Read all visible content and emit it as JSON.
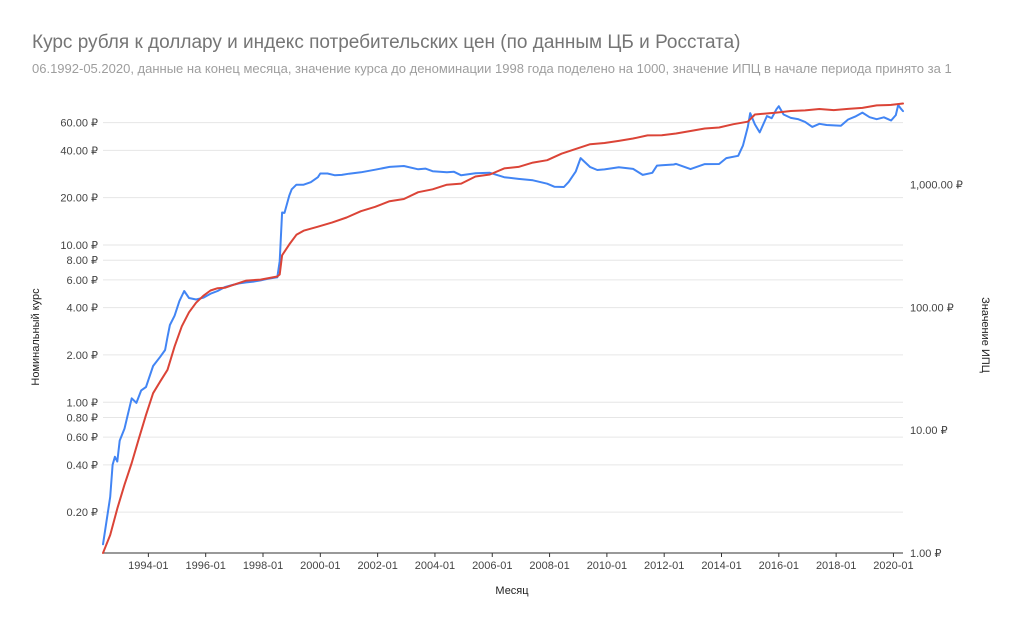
{
  "chart_data": {
    "type": "line",
    "title": "Курс рубля к доллару и индекс потребительских цен (по данным ЦБ и Росстата)",
    "subtitle": "06.1992-05.2020, данные на конец месяца, значение курса до деноминации 1998 года поделено на 1000, значение ИПЦ в начале периода принято за 1",
    "xlabel": "Месяц",
    "ylabel_left": "Номинальный курс",
    "ylabel_right": "Значение ИПЦ",
    "x_ticks": [
      "1994-01",
      "1996-01",
      "1998-01",
      "2000-01",
      "2002-01",
      "2004-01",
      "2006-01",
      "2008-01",
      "2010-01",
      "2012-01",
      "2014-01",
      "2016-01",
      "2018-01",
      "2020-01"
    ],
    "y_left_ticks": [
      "0.20 ₽",
      "0.40 ₽",
      "0.60 ₽",
      "0.80 ₽",
      "1.00 ₽",
      "2.00 ₽",
      "4.00 ₽",
      "6.00 ₽",
      "8.00 ₽",
      "10.00 ₽",
      "20.00 ₽",
      "40.00 ₽",
      "60.00 ₽"
    ],
    "y_right_ticks": [
      "1.00 ₽",
      "10.00 ₽",
      "100.00 ₽",
      "1,000.00 ₽"
    ],
    "y_left_scale": "log",
    "y_right_scale": "log",
    "ylim_left": [
      0.11,
      80
    ],
    "ylim_right": [
      1,
      4600
    ],
    "xlim": [
      "1992-06",
      "2020-05"
    ],
    "grid": true,
    "series": [
      {
        "name": "Номинальный курс",
        "axis": "left",
        "color": "#4285f4",
        "points": [
          [
            "1992-06",
            0.125
          ],
          [
            "1992-09",
            0.25
          ],
          [
            "1992-10",
            0.4
          ],
          [
            "1992-11",
            0.45
          ],
          [
            "1992-12",
            0.42
          ],
          [
            "1993-01",
            0.57
          ],
          [
            "1993-03",
            0.68
          ],
          [
            "1993-06",
            1.06
          ],
          [
            "1993-08",
            0.99
          ],
          [
            "1993-10",
            1.19
          ],
          [
            "1993-12",
            1.25
          ],
          [
            "1994-03",
            1.7
          ],
          [
            "1994-06",
            1.95
          ],
          [
            "1994-08",
            2.15
          ],
          [
            "1994-09",
            2.6
          ],
          [
            "1994-10",
            3.1
          ],
          [
            "1994-12",
            3.55
          ],
          [
            "1995-02",
            4.4
          ],
          [
            "1995-04",
            5.1
          ],
          [
            "1995-06",
            4.6
          ],
          [
            "1995-09",
            4.5
          ],
          [
            "1995-12",
            4.62
          ],
          [
            "1996-03",
            4.9
          ],
          [
            "1996-06",
            5.1
          ],
          [
            "1996-09",
            5.4
          ],
          [
            "1996-12",
            5.56
          ],
          [
            "1997-03",
            5.7
          ],
          [
            "1997-06",
            5.78
          ],
          [
            "1997-09",
            5.85
          ],
          [
            "1997-12",
            5.96
          ],
          [
            "1998-03",
            6.1
          ],
          [
            "1998-07",
            6.23
          ],
          [
            "1998-08",
            7.9
          ],
          [
            "1998-09",
            16.1
          ],
          [
            "1998-10",
            16.0
          ],
          [
            "1998-12",
            20.65
          ],
          [
            "1999-01",
            22.6
          ],
          [
            "1999-03",
            24.2
          ],
          [
            "1999-06",
            24.2
          ],
          [
            "1999-09",
            25.1
          ],
          [
            "1999-12",
            27.0
          ],
          [
            "2000-01",
            28.5
          ],
          [
            "2000-04",
            28.5
          ],
          [
            "2000-07",
            27.8
          ],
          [
            "2000-10",
            27.9
          ],
          [
            "2001-01",
            28.4
          ],
          [
            "2001-06",
            29.0
          ],
          [
            "2001-12",
            30.14
          ],
          [
            "2002-06",
            31.4
          ],
          [
            "2002-12",
            31.78
          ],
          [
            "2003-06",
            30.3
          ],
          [
            "2003-09",
            30.6
          ],
          [
            "2003-12",
            29.45
          ],
          [
            "2004-06",
            29.0
          ],
          [
            "2004-09",
            29.2
          ],
          [
            "2004-12",
            27.75
          ],
          [
            "2005-06",
            28.6
          ],
          [
            "2005-12",
            28.78
          ],
          [
            "2006-06",
            27.0
          ],
          [
            "2006-12",
            26.33
          ],
          [
            "2007-06",
            25.8
          ],
          [
            "2007-12",
            24.55
          ],
          [
            "2008-03",
            23.5
          ],
          [
            "2008-07",
            23.4
          ],
          [
            "2008-09",
            25.2
          ],
          [
            "2008-12",
            29.4
          ],
          [
            "2009-02",
            35.7
          ],
          [
            "2009-06",
            31.3
          ],
          [
            "2009-09",
            30.0
          ],
          [
            "2009-12",
            30.24
          ],
          [
            "2010-06",
            31.2
          ],
          [
            "2010-12",
            30.48
          ],
          [
            "2011-04",
            27.9
          ],
          [
            "2011-08",
            28.8
          ],
          [
            "2011-10",
            32.0
          ],
          [
            "2011-12",
            32.2
          ],
          [
            "2012-05",
            32.5
          ],
          [
            "2012-06",
            32.8
          ],
          [
            "2012-12",
            30.4
          ],
          [
            "2013-06",
            32.7
          ],
          [
            "2013-12",
            32.73
          ],
          [
            "2014-03",
            35.7
          ],
          [
            "2014-08",
            36.9
          ],
          [
            "2014-10",
            43.0
          ],
          [
            "2014-12",
            56.3
          ],
          [
            "2015-01",
            69.0
          ],
          [
            "2015-03",
            58.5
          ],
          [
            "2015-05",
            52.0
          ],
          [
            "2015-08",
            66.0
          ],
          [
            "2015-10",
            64.0
          ],
          [
            "2015-12",
            72.9
          ],
          [
            "2016-01",
            76.3
          ],
          [
            "2016-03",
            67.6
          ],
          [
            "2016-06",
            64.3
          ],
          [
            "2016-09",
            63.2
          ],
          [
            "2016-12",
            60.66
          ],
          [
            "2017-03",
            56.4
          ],
          [
            "2017-06",
            59.0
          ],
          [
            "2017-09",
            58.0
          ],
          [
            "2017-12",
            57.6
          ],
          [
            "2018-03",
            57.3
          ],
          [
            "2018-06",
            62.8
          ],
          [
            "2018-09",
            65.6
          ],
          [
            "2018-12",
            69.5
          ],
          [
            "2019-03",
            65.0
          ],
          [
            "2019-06",
            63.1
          ],
          [
            "2019-09",
            64.9
          ],
          [
            "2019-12",
            61.9
          ],
          [
            "2020-02",
            66.99
          ],
          [
            "2020-03",
            77.7
          ],
          [
            "2020-04",
            74.0
          ],
          [
            "2020-05",
            71.1
          ]
        ]
      },
      {
        "name": "Значение ИПЦ",
        "axis": "right",
        "color": "#db4437",
        "points": [
          [
            "1992-06",
            1.0
          ],
          [
            "1992-09",
            1.4
          ],
          [
            "1992-12",
            2.3
          ],
          [
            "1993-03",
            3.6
          ],
          [
            "1993-06",
            5.4
          ],
          [
            "1993-09",
            8.5
          ],
          [
            "1993-12",
            13.3
          ],
          [
            "1994-03",
            20.0
          ],
          [
            "1994-06",
            25.0
          ],
          [
            "1994-09",
            31.0
          ],
          [
            "1994-12",
            48.0
          ],
          [
            "1995-03",
            70.0
          ],
          [
            "1995-06",
            91.0
          ],
          [
            "1995-09",
            109.0
          ],
          [
            "1995-12",
            124.0
          ],
          [
            "1996-03",
            137.0
          ],
          [
            "1996-06",
            143.0
          ],
          [
            "1996-09",
            144.0
          ],
          [
            "1996-12",
            151.0
          ],
          [
            "1997-06",
            165.0
          ],
          [
            "1997-12",
            168.0
          ],
          [
            "1998-07",
            178.0
          ],
          [
            "1998-08",
            185.0
          ],
          [
            "1998-09",
            265.0
          ],
          [
            "1998-12",
            325.0
          ],
          [
            "1999-03",
            389.0
          ],
          [
            "1999-06",
            420.0
          ],
          [
            "1999-12",
            453.0
          ],
          [
            "2000-06",
            491.0
          ],
          [
            "2000-12",
            538.0
          ],
          [
            "2001-06",
            605.0
          ],
          [
            "2001-12",
            658.0
          ],
          [
            "2002-06",
            730.0
          ],
          [
            "2002-12",
            761.0
          ],
          [
            "2003-06",
            864.0
          ],
          [
            "2003-12",
            912.0
          ],
          [
            "2004-06",
            994.0
          ],
          [
            "2004-12",
            1015.0
          ],
          [
            "2005-06",
            1160.0
          ],
          [
            "2005-12",
            1205.0
          ],
          [
            "2006-06",
            1350.0
          ],
          [
            "2006-12",
            1388.0
          ],
          [
            "2007-06",
            1505.0
          ],
          [
            "2007-12",
            1575.0
          ],
          [
            "2008-06",
            1778.0
          ],
          [
            "2008-12",
            1945.0
          ],
          [
            "2009-06",
            2127.0
          ],
          [
            "2009-12",
            2172.0
          ],
          [
            "2010-06",
            2262.0
          ],
          [
            "2010-12",
            2363.0
          ],
          [
            "2011-06",
            2507.0
          ],
          [
            "2011-12",
            2513.0
          ],
          [
            "2012-06",
            2595.0
          ],
          [
            "2012-12",
            2722.0
          ],
          [
            "2013-06",
            2850.0
          ],
          [
            "2013-12",
            2907.0
          ],
          [
            "2014-06",
            3091.0
          ],
          [
            "2014-12",
            3238.0
          ],
          [
            "2015-03",
            3710.0
          ],
          [
            "2015-12",
            3840.0
          ],
          [
            "2016-06",
            3961.0
          ],
          [
            "2016-12",
            4002.0
          ],
          [
            "2017-06",
            4107.0
          ],
          [
            "2017-12",
            4025.0
          ],
          [
            "2018-06",
            4117.0
          ],
          [
            "2018-12",
            4200.0
          ],
          [
            "2019-06",
            4400.0
          ],
          [
            "2019-12",
            4440.0
          ],
          [
            "2020-05",
            4560.0
          ]
        ]
      }
    ]
  }
}
